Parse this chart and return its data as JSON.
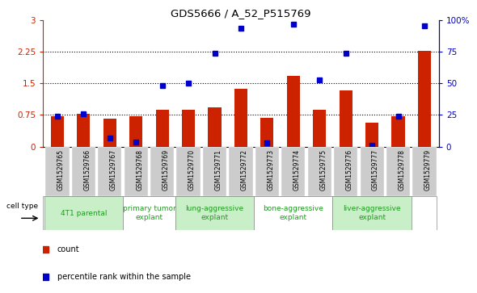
{
  "title": "GDS5666 / A_52_P515769",
  "samples": [
    "GSM1529765",
    "GSM1529766",
    "GSM1529767",
    "GSM1529768",
    "GSM1529769",
    "GSM1529770",
    "GSM1529771",
    "GSM1529772",
    "GSM1529773",
    "GSM1529774",
    "GSM1529775",
    "GSM1529776",
    "GSM1529777",
    "GSM1529778",
    "GSM1529779"
  ],
  "bar_heights": [
    0.72,
    0.77,
    0.67,
    0.73,
    0.87,
    0.87,
    0.93,
    1.38,
    0.68,
    1.68,
    0.87,
    1.33,
    0.57,
    0.73,
    2.27
  ],
  "blue_dots_left_axis": [
    0.72,
    0.77,
    0.2,
    0.1,
    1.45,
    1.5,
    2.22,
    2.82,
    0.08,
    2.92,
    1.58,
    2.22,
    0.03,
    0.72,
    2.88
  ],
  "ylim_left": [
    0,
    3.0
  ],
  "ylim_right": [
    0,
    100
  ],
  "yticks_left": [
    0,
    0.75,
    1.5,
    2.25,
    3.0
  ],
  "ytick_labels_left": [
    "0",
    "0.75",
    "1.5",
    "2.25",
    "3"
  ],
  "yticks_right": [
    0,
    25,
    50,
    75,
    100
  ],
  "ytick_labels_right": [
    "0",
    "25",
    "50",
    "75",
    "100%"
  ],
  "groups": [
    {
      "label": "4T1 parental",
      "start": 0,
      "end": 2,
      "color": "#c8efc8"
    },
    {
      "label": "primary tumor\nexplant",
      "start": 3,
      "end": 4,
      "color": "#ffffff"
    },
    {
      "label": "lung-aggressive\nexplant",
      "start": 5,
      "end": 7,
      "color": "#c8efc8"
    },
    {
      "label": "bone-aggressive\nexplant",
      "start": 8,
      "end": 10,
      "color": "#ffffff"
    },
    {
      "label": "liver-aggressive\nexplant",
      "start": 11,
      "end": 13,
      "color": "#c8efc8"
    }
  ],
  "group_colors": [
    "#c8efc8",
    "#ffffff",
    "#c8efc8",
    "#ffffff",
    "#c8efc8"
  ],
  "bar_color": "#cc2200",
  "dot_color": "#0000cc",
  "tick_bg_color": "#cccccc",
  "grid_color": "black",
  "grid_linestyle": "dotted",
  "grid_linewidth": 0.8,
  "cell_type_label": "cell type",
  "legend_count": "count",
  "legend_percentile": "percentile rank within the sample",
  "bar_width": 0.5
}
